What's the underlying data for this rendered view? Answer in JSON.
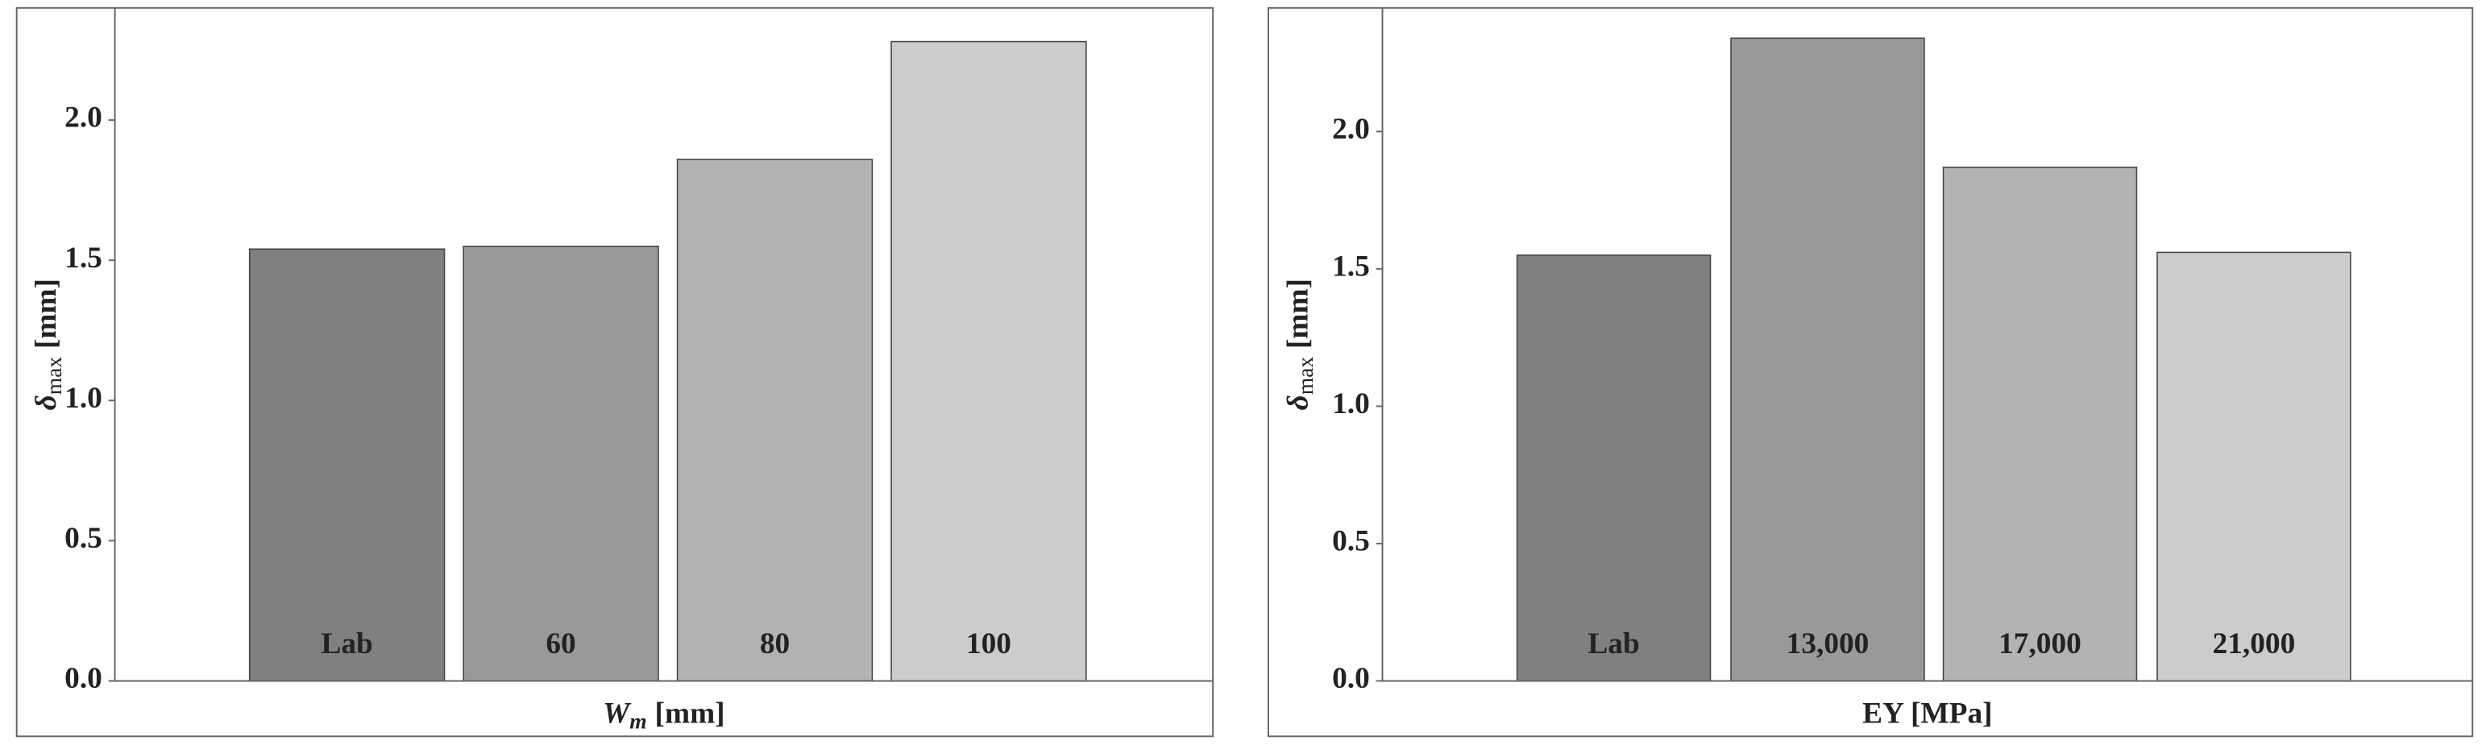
{
  "chart_data": [
    {
      "type": "bar",
      "categories": [
        "Lab",
        "60",
        "80",
        "100"
      ],
      "values": [
        1.54,
        1.55,
        1.86,
        2.28
      ],
      "colors": [
        "#808080",
        "#999999",
        "#b3b3b3",
        "#cccccc"
      ],
      "xlabel": {
        "symbol": "W",
        "sub": "m",
        "unit": "[mm]"
      },
      "ylabel": {
        "symbol": "δ",
        "sub": "max",
        "unit": "[mm]"
      },
      "ylim": [
        0,
        2.4
      ],
      "yticks": [
        {
          "value": 0,
          "label": "0.0"
        },
        0.5,
        {
          "value": 1,
          "label": "1.0"
        },
        1.5,
        {
          "value": 2,
          "label": "2.0"
        }
      ]
    },
    {
      "type": "bar",
      "categories": [
        "Lab",
        "13,000",
        "17,000",
        "21,000"
      ],
      "values": [
        1.55,
        2.34,
        1.87,
        1.56
      ],
      "colors": [
        "#808080",
        "#999999",
        "#b3b3b3",
        "#cccccc"
      ],
      "xlabel": {
        "symbol": "",
        "sub": "",
        "unit": "EY [MPa]"
      },
      "ylabel": {
        "symbol": "δ",
        "sub": "max",
        "unit": "[mm]"
      },
      "ylim": [
        0,
        2.45
      ],
      "yticks": [
        {
          "value": 0,
          "label": "0.0"
        },
        0.5,
        {
          "value": 1,
          "label": "1.0"
        },
        1.5,
        {
          "value": 2,
          "label": "2.0"
        }
      ]
    }
  ]
}
